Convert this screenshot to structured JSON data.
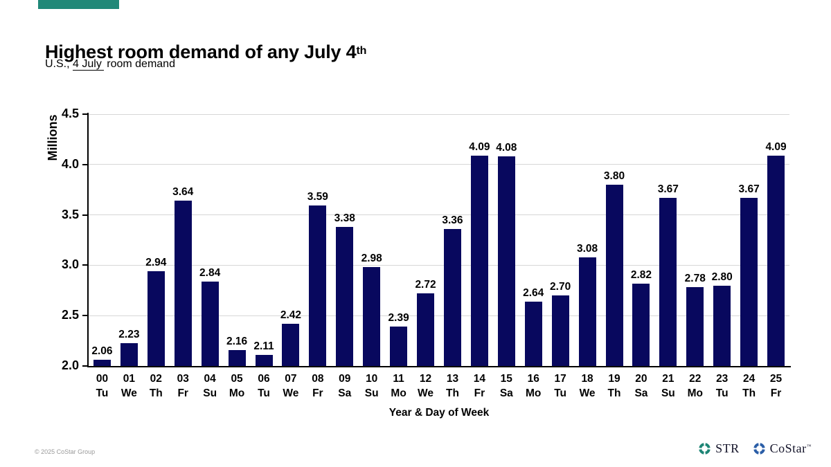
{
  "header": {
    "brand_color": "#208878",
    "title": "Highest room demand of any July 4",
    "title_sup": "th",
    "subtitle_prefix": "U.S., ",
    "subtitle_underlined": "4 July",
    "subtitle_suffix": " room demand"
  },
  "chart_data": {
    "type": "bar",
    "title": "Highest room demand of any July 4th",
    "subtitle": "U.S., 4 July room demand",
    "xlabel": "Year & Day of Week",
    "ylabel": "Millions",
    "ylim": [
      2.0,
      4.5
    ],
    "ytick_step": 0.5,
    "yticks": [
      "2.0",
      "2.5",
      "3.0",
      "3.5",
      "4.0",
      "4.5"
    ],
    "grid": true,
    "legend": false,
    "bar_color": "#08085e",
    "gridline_color": "#d6d6d6",
    "categories": [
      "00",
      "01",
      "02",
      "03",
      "04",
      "05",
      "06",
      "07",
      "08",
      "09",
      "10",
      "11",
      "12",
      "13",
      "14",
      "15",
      "16",
      "17",
      "18",
      "19",
      "20",
      "21",
      "22",
      "23",
      "24",
      "25"
    ],
    "day_of_week": [
      "Tu",
      "We",
      "Th",
      "Fr",
      "Su",
      "Mo",
      "Tu",
      "We",
      "Fr",
      "Sa",
      "Su",
      "Mo",
      "We",
      "Th",
      "Fr",
      "Sa",
      "Mo",
      "Tu",
      "We",
      "Th",
      "Sa",
      "Su",
      "Mo",
      "Tu",
      "Th",
      "Fr"
    ],
    "values": [
      2.06,
      2.23,
      2.94,
      3.64,
      2.84,
      2.16,
      2.11,
      2.42,
      3.59,
      3.38,
      2.98,
      2.39,
      2.72,
      3.36,
      4.09,
      4.08,
      2.64,
      2.7,
      3.08,
      3.8,
      2.82,
      3.67,
      2.78,
      2.8,
      3.67,
      4.09
    ]
  },
  "footer": {
    "copyright": "© 2025 CoStar Group",
    "str_label": "STR",
    "str_color": "#1d8575",
    "costar_label": "CoStar",
    "costar_tm": "™",
    "costar_color": "#2b5ea7"
  }
}
